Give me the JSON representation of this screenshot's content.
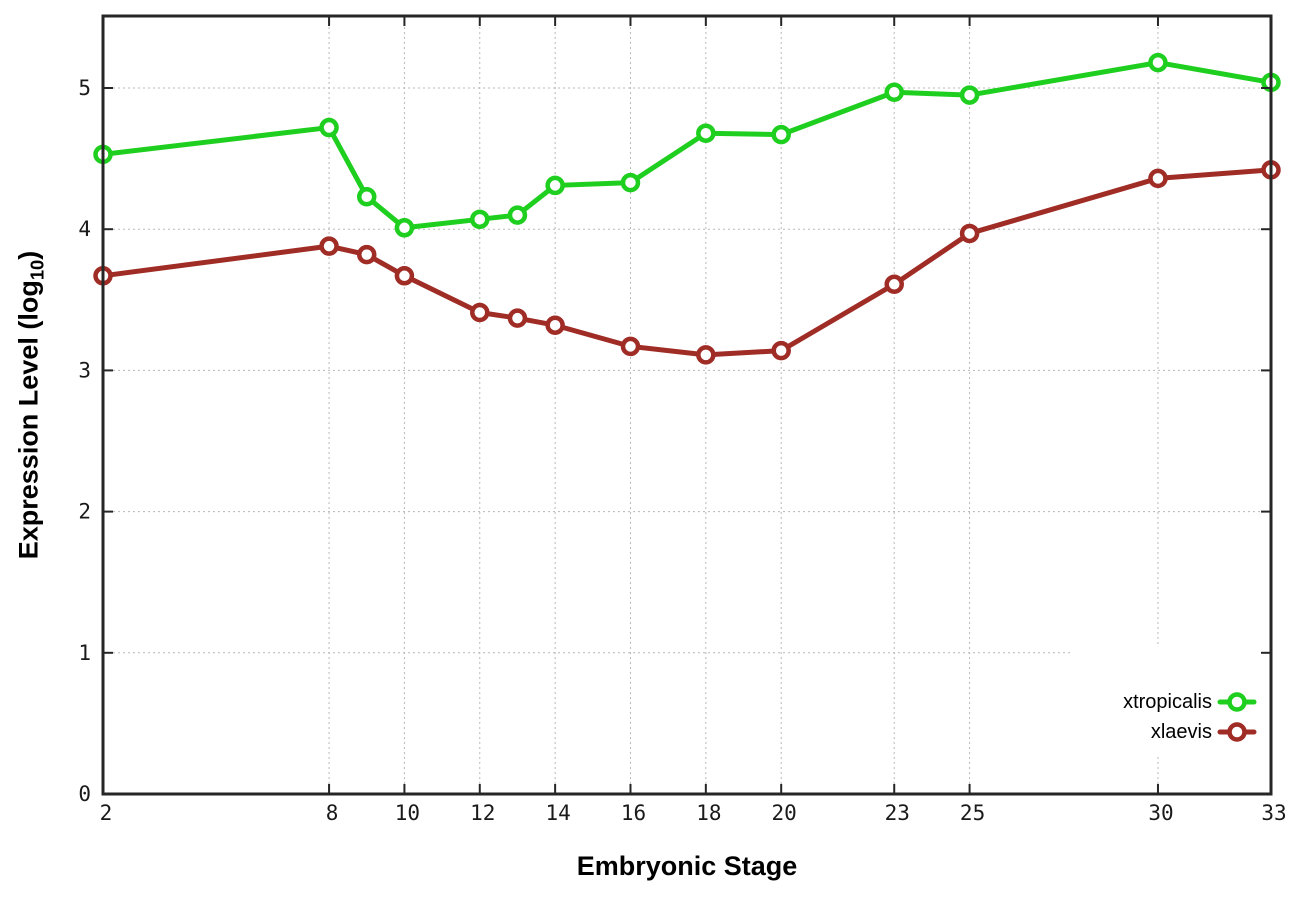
{
  "chart_data": {
    "type": "line",
    "title": "",
    "xlabel": "Embryonic Stage",
    "ylabel_main": "Expression Level (log",
    "ylabel_sub": "10",
    "ylabel_close": ")",
    "x": [
      2,
      8,
      9,
      10,
      12,
      13,
      14,
      16,
      18,
      20,
      23,
      25,
      30,
      33
    ],
    "series": [
      {
        "name": "xtropicalis",
        "color": "#1fcf1f",
        "values": [
          4.53,
          4.72,
          4.23,
          4.01,
          4.07,
          4.1,
          4.31,
          4.33,
          4.68,
          4.67,
          4.97,
          4.95,
          5.18,
          5.04
        ]
      },
      {
        "name": "xlaevis",
        "color": "#a02c26",
        "values": [
          3.67,
          3.88,
          3.82,
          3.67,
          3.41,
          3.37,
          3.32,
          3.17,
          3.11,
          3.14,
          3.61,
          3.97,
          4.36,
          4.42
        ]
      }
    ],
    "xticks": [
      2,
      8,
      10,
      12,
      14,
      16,
      18,
      20,
      23,
      25,
      30,
      33
    ],
    "yticks": [
      0,
      1,
      2,
      3,
      4,
      5
    ],
    "xlim": [
      2,
      33
    ],
    "ylim": [
      0,
      5.51
    ],
    "grid": true,
    "legend_position": "bottom-right",
    "marker": "open-circle",
    "colors": {
      "border": "#262626",
      "grid": "#b8b8b8",
      "tick_label": "#1a1a1a",
      "background": "#ffffff"
    }
  }
}
